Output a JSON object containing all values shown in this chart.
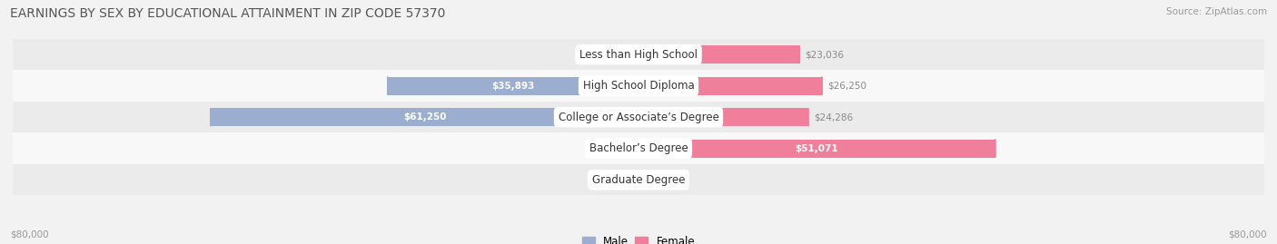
{
  "title": "EARNINGS BY SEX BY EDUCATIONAL ATTAINMENT IN ZIP CODE 57370",
  "source": "Source: ZipAtlas.com",
  "categories": [
    "Less than High School",
    "High School Diploma",
    "College or Associate’s Degree",
    "Bachelor’s Degree",
    "Graduate Degree"
  ],
  "male_values": [
    0,
    35893,
    61250,
    0,
    0
  ],
  "female_values": [
    23036,
    26250,
    24286,
    51071,
    0
  ],
  "male_color": "#9baed0",
  "female_color": "#ef7f9a",
  "background_color": "#f2f2f2",
  "row_bg_odd": "#ebebeb",
  "row_bg_even": "#f8f8f8",
  "axis_max": 80000,
  "bar_height": 0.58,
  "footer_left": "$80,000",
  "footer_right": "$80,000",
  "cat_label_fontsize": 8.5,
  "val_label_fontsize": 7.5,
  "title_fontsize": 10,
  "source_fontsize": 7.5
}
